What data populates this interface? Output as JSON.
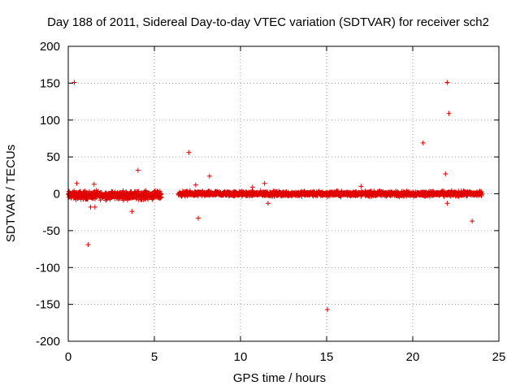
{
  "chart_data": {
    "type": "scatter",
    "title": "Day 188 of 2011, Sidereal Day-to-day VTEC variation (SDTVAR) for receiver sch2",
    "xlabel": "GPS time / hours",
    "ylabel": "SDTVAR / TECUs",
    "xlim": [
      0,
      25
    ],
    "ylim": [
      -200,
      200
    ],
    "xticks": [
      0,
      5,
      10,
      15,
      20,
      25
    ],
    "yticks": [
      -200,
      -150,
      -100,
      -50,
      0,
      50,
      100,
      150,
      200
    ],
    "grid": true,
    "marker": "+",
    "color": "#e00000",
    "series": [
      {
        "name": "SDTVAR",
        "outliers": [
          {
            "x": 0.35,
            "y": 151
          },
          {
            "x": 0.5,
            "y": 14
          },
          {
            "x": 1.15,
            "y": -69
          },
          {
            "x": 1.3,
            "y": -18
          },
          {
            "x": 1.55,
            "y": -18
          },
          {
            "x": 1.5,
            "y": 13
          },
          {
            "x": 3.7,
            "y": -24
          },
          {
            "x": 4.05,
            "y": 32
          },
          {
            "x": 7.0,
            "y": 56
          },
          {
            "x": 7.4,
            "y": 12
          },
          {
            "x": 7.55,
            "y": -33
          },
          {
            "x": 8.2,
            "y": 24
          },
          {
            "x": 10.7,
            "y": 9
          },
          {
            "x": 11.4,
            "y": 14
          },
          {
            "x": 11.6,
            "y": -13
          },
          {
            "x": 15.05,
            "y": -157
          },
          {
            "x": 17.0,
            "y": 10
          },
          {
            "x": 20.6,
            "y": 69
          },
          {
            "x": 21.9,
            "y": 27
          },
          {
            "x": 22.0,
            "y": 151
          },
          {
            "x": 22.1,
            "y": 109
          },
          {
            "x": 22.0,
            "y": -13
          },
          {
            "x": 23.45,
            "y": -37
          }
        ],
        "dense_segments": [
          {
            "x_start": 0.0,
            "x_end": 5.4,
            "center": -2,
            "spread": 5
          },
          {
            "x_start": 6.4,
            "x_end": 24.0,
            "center": 0,
            "spread": 3
          }
        ]
      }
    ]
  }
}
